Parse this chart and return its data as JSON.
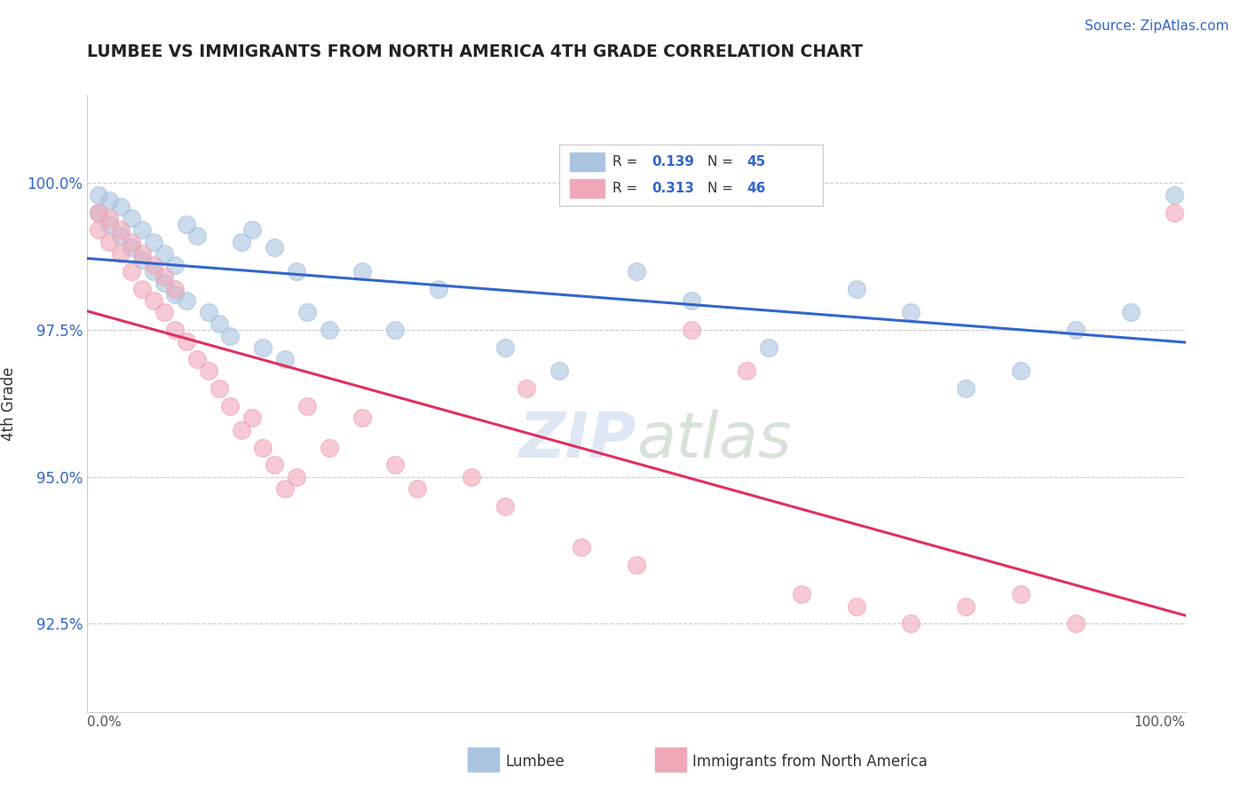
{
  "title": "LUMBEE VS IMMIGRANTS FROM NORTH AMERICA 4TH GRADE CORRELATION CHART",
  "source": "Source: ZipAtlas.com",
  "ylabel": "4th Grade",
  "xlim": [
    0,
    100
  ],
  "ylim": [
    91.0,
    101.5
  ],
  "yticks": [
    92.5,
    95.0,
    97.5,
    100.0
  ],
  "ytick_labels": [
    "92.5%",
    "95.0%",
    "97.5%",
    "100.0%"
  ],
  "legend_lumbee": "Lumbee",
  "legend_immigrants": "Immigrants from North America",
  "R_lumbee": "0.139",
  "N_lumbee": "45",
  "R_immigrants": "0.313",
  "N_immigrants": "46",
  "lumbee_color": "#aac4e0",
  "immigrants_color": "#f0a8b8",
  "lumbee_line_color": "#3366cc",
  "immigrants_line_color": "#e03060",
  "background_color": "#ffffff",
  "lumbee_x": [
    1,
    1,
    2,
    2,
    3,
    3,
    4,
    4,
    5,
    5,
    6,
    6,
    7,
    7,
    8,
    8,
    9,
    9,
    10,
    11,
    12,
    13,
    14,
    15,
    16,
    17,
    18,
    19,
    20,
    22,
    25,
    28,
    32,
    38,
    43,
    50,
    55,
    62,
    70,
    75,
    80,
    85,
    90,
    95,
    99
  ],
  "lumbee_y": [
    99.8,
    99.5,
    99.7,
    99.3,
    99.6,
    99.1,
    99.4,
    98.9,
    99.2,
    98.7,
    99.0,
    98.5,
    98.8,
    98.3,
    98.6,
    98.1,
    99.3,
    98.0,
    99.1,
    97.8,
    97.6,
    97.4,
    99.0,
    99.2,
    97.2,
    98.9,
    97.0,
    98.5,
    97.8,
    97.5,
    98.5,
    97.5,
    98.2,
    97.2,
    96.8,
    98.5,
    98.0,
    97.2,
    98.2,
    97.8,
    96.5,
    96.8,
    97.5,
    97.8,
    99.8
  ],
  "immigrants_x": [
    1,
    1,
    2,
    2,
    3,
    3,
    4,
    4,
    5,
    5,
    6,
    6,
    7,
    7,
    8,
    8,
    9,
    10,
    11,
    12,
    13,
    14,
    15,
    16,
    17,
    18,
    19,
    20,
    22,
    25,
    28,
    30,
    35,
    38,
    40,
    45,
    50,
    55,
    60,
    65,
    70,
    75,
    80,
    85,
    90,
    99
  ],
  "immigrants_y": [
    99.5,
    99.2,
    99.4,
    99.0,
    99.2,
    98.8,
    99.0,
    98.5,
    98.8,
    98.2,
    98.6,
    98.0,
    98.4,
    97.8,
    98.2,
    97.5,
    97.3,
    97.0,
    96.8,
    96.5,
    96.2,
    95.8,
    96.0,
    95.5,
    95.2,
    94.8,
    95.0,
    96.2,
    95.5,
    96.0,
    95.2,
    94.8,
    95.0,
    94.5,
    96.5,
    93.8,
    93.5,
    97.5,
    96.8,
    93.0,
    92.8,
    92.5,
    92.8,
    93.0,
    92.5,
    99.5
  ]
}
